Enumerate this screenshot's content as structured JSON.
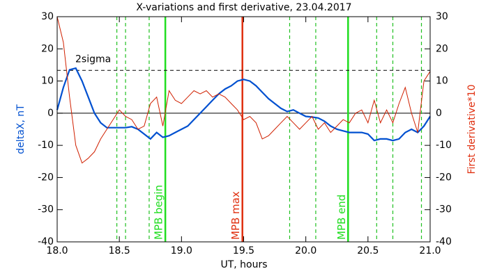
{
  "chart_data": {
    "type": "line",
    "title": "X-variations and first derivative, 23.04.2017",
    "xlabel": "UT, hours",
    "ylabel": "deltaX, nT",
    "y2label": "First derivative*10",
    "ylabel_color": "#0050d0",
    "y2label_color": "#e03010",
    "xlim": [
      18,
      21
    ],
    "xticks": [
      {
        "value": 18,
        "label": "18.0"
      },
      {
        "value": 18.5,
        "label": "18.5"
      },
      {
        "value": 19,
        "label": "19.0"
      },
      {
        "value": 19.5,
        "label": "19.5"
      },
      {
        "value": 20,
        "label": "20.0"
      },
      {
        "value": 20.5,
        "label": "20.5"
      },
      {
        "value": 21,
        "label": "21.0"
      }
    ],
    "ylim": [
      -40,
      30
    ],
    "yticks": [
      -40,
      -30,
      -20,
      -10,
      0,
      10,
      20,
      30
    ],
    "y2lim": [
      -40,
      30
    ],
    "y2ticks": [
      -40,
      -30,
      -20,
      -10,
      0,
      10,
      20,
      30
    ],
    "x": [
      18.0,
      18.05,
      18.1,
      18.15,
      18.2,
      18.25,
      18.3,
      18.35,
      18.4,
      18.45,
      18.5,
      18.55,
      18.6,
      18.65,
      18.7,
      18.75,
      18.8,
      18.85,
      18.9,
      18.95,
      19.0,
      19.05,
      19.1,
      19.15,
      19.2,
      19.25,
      19.3,
      19.35,
      19.4,
      19.45,
      19.5,
      19.55,
      19.6,
      19.65,
      19.7,
      19.75,
      19.8,
      19.85,
      19.9,
      19.95,
      20.0,
      20.05,
      20.1,
      20.15,
      20.2,
      20.25,
      20.3,
      20.35,
      20.4,
      20.45,
      20.5,
      20.55,
      20.6,
      20.65,
      20.7,
      20.75,
      20.8,
      20.85,
      20.9,
      20.95,
      21.0
    ],
    "series": [
      {
        "name": "deltaX",
        "color": "#0050d0",
        "width": 2.2,
        "values": [
          1,
          8,
          13.5,
          14,
          10,
          5,
          0,
          -3,
          -4.5,
          -4.5,
          -4.5,
          -4.5,
          -4.2,
          -5,
          -6.5,
          -8,
          -6,
          -7.5,
          -7,
          -6,
          -5,
          -4,
          -2,
          0,
          2,
          4,
          6,
          7.5,
          8.5,
          10,
          10.5,
          10,
          8.5,
          6.5,
          4.5,
          3,
          1.5,
          0.5,
          1,
          0,
          -1,
          -1.2,
          -1.5,
          -2.5,
          -4,
          -5,
          -5.5,
          -6,
          -6,
          -6,
          -6.5,
          -8.5,
          -8,
          -8,
          -8.5,
          -8,
          -6,
          -5,
          -6,
          -4,
          -1
        ]
      },
      {
        "name": "First derivative*10",
        "color": "#d02000",
        "width": 1,
        "axis": "y2",
        "values": [
          30,
          22,
          5,
          -10,
          -15.5,
          -14,
          -12,
          -8,
          -5,
          -2,
          1,
          -1,
          -2,
          -5,
          -4,
          3,
          5,
          -4,
          7,
          4,
          3,
          5,
          7,
          6,
          7,
          5,
          6,
          5,
          3,
          1,
          -2,
          -1,
          -3,
          -8,
          -7,
          -5,
          -3,
          -1,
          -3,
          -5,
          -3,
          -1,
          -5,
          -3,
          -6,
          -4,
          -2,
          -3,
          0,
          1,
          -3,
          4,
          -3,
          1,
          -3,
          3,
          8,
          0,
          -6,
          10,
          13
        ]
      }
    ],
    "hlines": [
      {
        "y": 13.3,
        "label": "2sigma",
        "color": "#000000"
      }
    ],
    "vlines": [
      {
        "x": 18.48,
        "color": "#20c020",
        "style": "dashed"
      },
      {
        "x": 18.55,
        "color": "#20c020",
        "style": "dashed"
      },
      {
        "x": 18.74,
        "color": "#20c020",
        "style": "dashed"
      },
      {
        "x": 18.87,
        "color": "#20dd20",
        "style": "solid",
        "label": "MPB begin"
      },
      {
        "x": 19.49,
        "color": "#e03010",
        "style": "solid",
        "label": "MPB max"
      },
      {
        "x": 19.87,
        "color": "#20c020",
        "style": "dashed"
      },
      {
        "x": 20.08,
        "color": "#20c020",
        "style": "dashed"
      },
      {
        "x": 20.34,
        "color": "#20dd20",
        "style": "solid",
        "label": "MPB end"
      },
      {
        "x": 20.57,
        "color": "#20c020",
        "style": "dashed"
      },
      {
        "x": 20.7,
        "color": "#20c020",
        "style": "dashed"
      },
      {
        "x": 20.93,
        "color": "#20c020",
        "style": "dashed"
      }
    ]
  }
}
